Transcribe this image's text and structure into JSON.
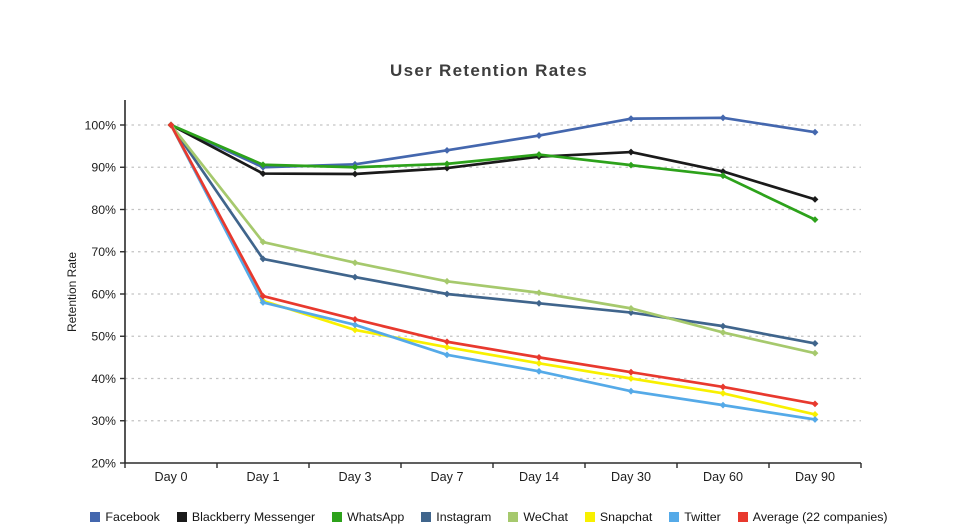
{
  "page": {
    "background": "#ffffff"
  },
  "chart_data": {
    "type": "line",
    "title": "User Retention Rates",
    "xlabel": "",
    "ylabel": "Retention Rate",
    "categories": [
      "Day 0",
      "Day 1",
      "Day 3",
      "Day 7",
      "Day 14",
      "Day 30",
      "Day 60",
      "Day 90"
    ],
    "y_ticks": [
      "20%",
      "30%",
      "40%",
      "50%",
      "60%",
      "70%",
      "80%",
      "90%",
      "100%"
    ],
    "ylim": [
      20,
      106
    ],
    "grid": "horizontal-dashed",
    "legend_position": "bottom",
    "series": [
      {
        "name": "Facebook",
        "color": "#4467AE",
        "values": [
          100,
          90.0,
          90.7,
          94.0,
          97.5,
          101.5,
          101.7,
          98.3
        ]
      },
      {
        "name": "Blackberry Messenger",
        "color": "#1A1A1A",
        "values": [
          100,
          88.5,
          88.4,
          89.8,
          92.5,
          93.6,
          89.0,
          82.4
        ]
      },
      {
        "name": "WhatsApp",
        "color": "#2DA21B",
        "values": [
          100,
          90.6,
          90.0,
          90.8,
          93.0,
          90.5,
          88.0,
          77.6
        ]
      },
      {
        "name": "Instagram",
        "color": "#40658C",
        "values": [
          100,
          68.3,
          64.0,
          60.0,
          57.8,
          55.6,
          52.4,
          48.3
        ]
      },
      {
        "name": "WeChat",
        "color": "#A6C96D",
        "values": [
          100,
          72.3,
          67.4,
          63.0,
          60.3,
          56.6,
          50.9,
          46.0
        ]
      },
      {
        "name": "Snapchat",
        "color": "#F8F000",
        "values": [
          100,
          58.4,
          51.5,
          47.4,
          43.6,
          40.0,
          36.5,
          31.5
        ]
      },
      {
        "name": "Twitter",
        "color": "#55AAE8",
        "values": [
          100,
          58.0,
          52.7,
          45.6,
          41.7,
          37.0,
          33.7,
          30.3
        ]
      },
      {
        "name": "Average (22 companies)",
        "color": "#E8392E",
        "values": [
          100,
          59.5,
          54.0,
          48.7,
          45.0,
          41.5,
          38.0,
          34.0
        ]
      }
    ],
    "style": {
      "axis_color": "#2b2b2b",
      "grid_color": "#c3c3c3",
      "tick_label_color": "#1d1d1d"
    }
  }
}
